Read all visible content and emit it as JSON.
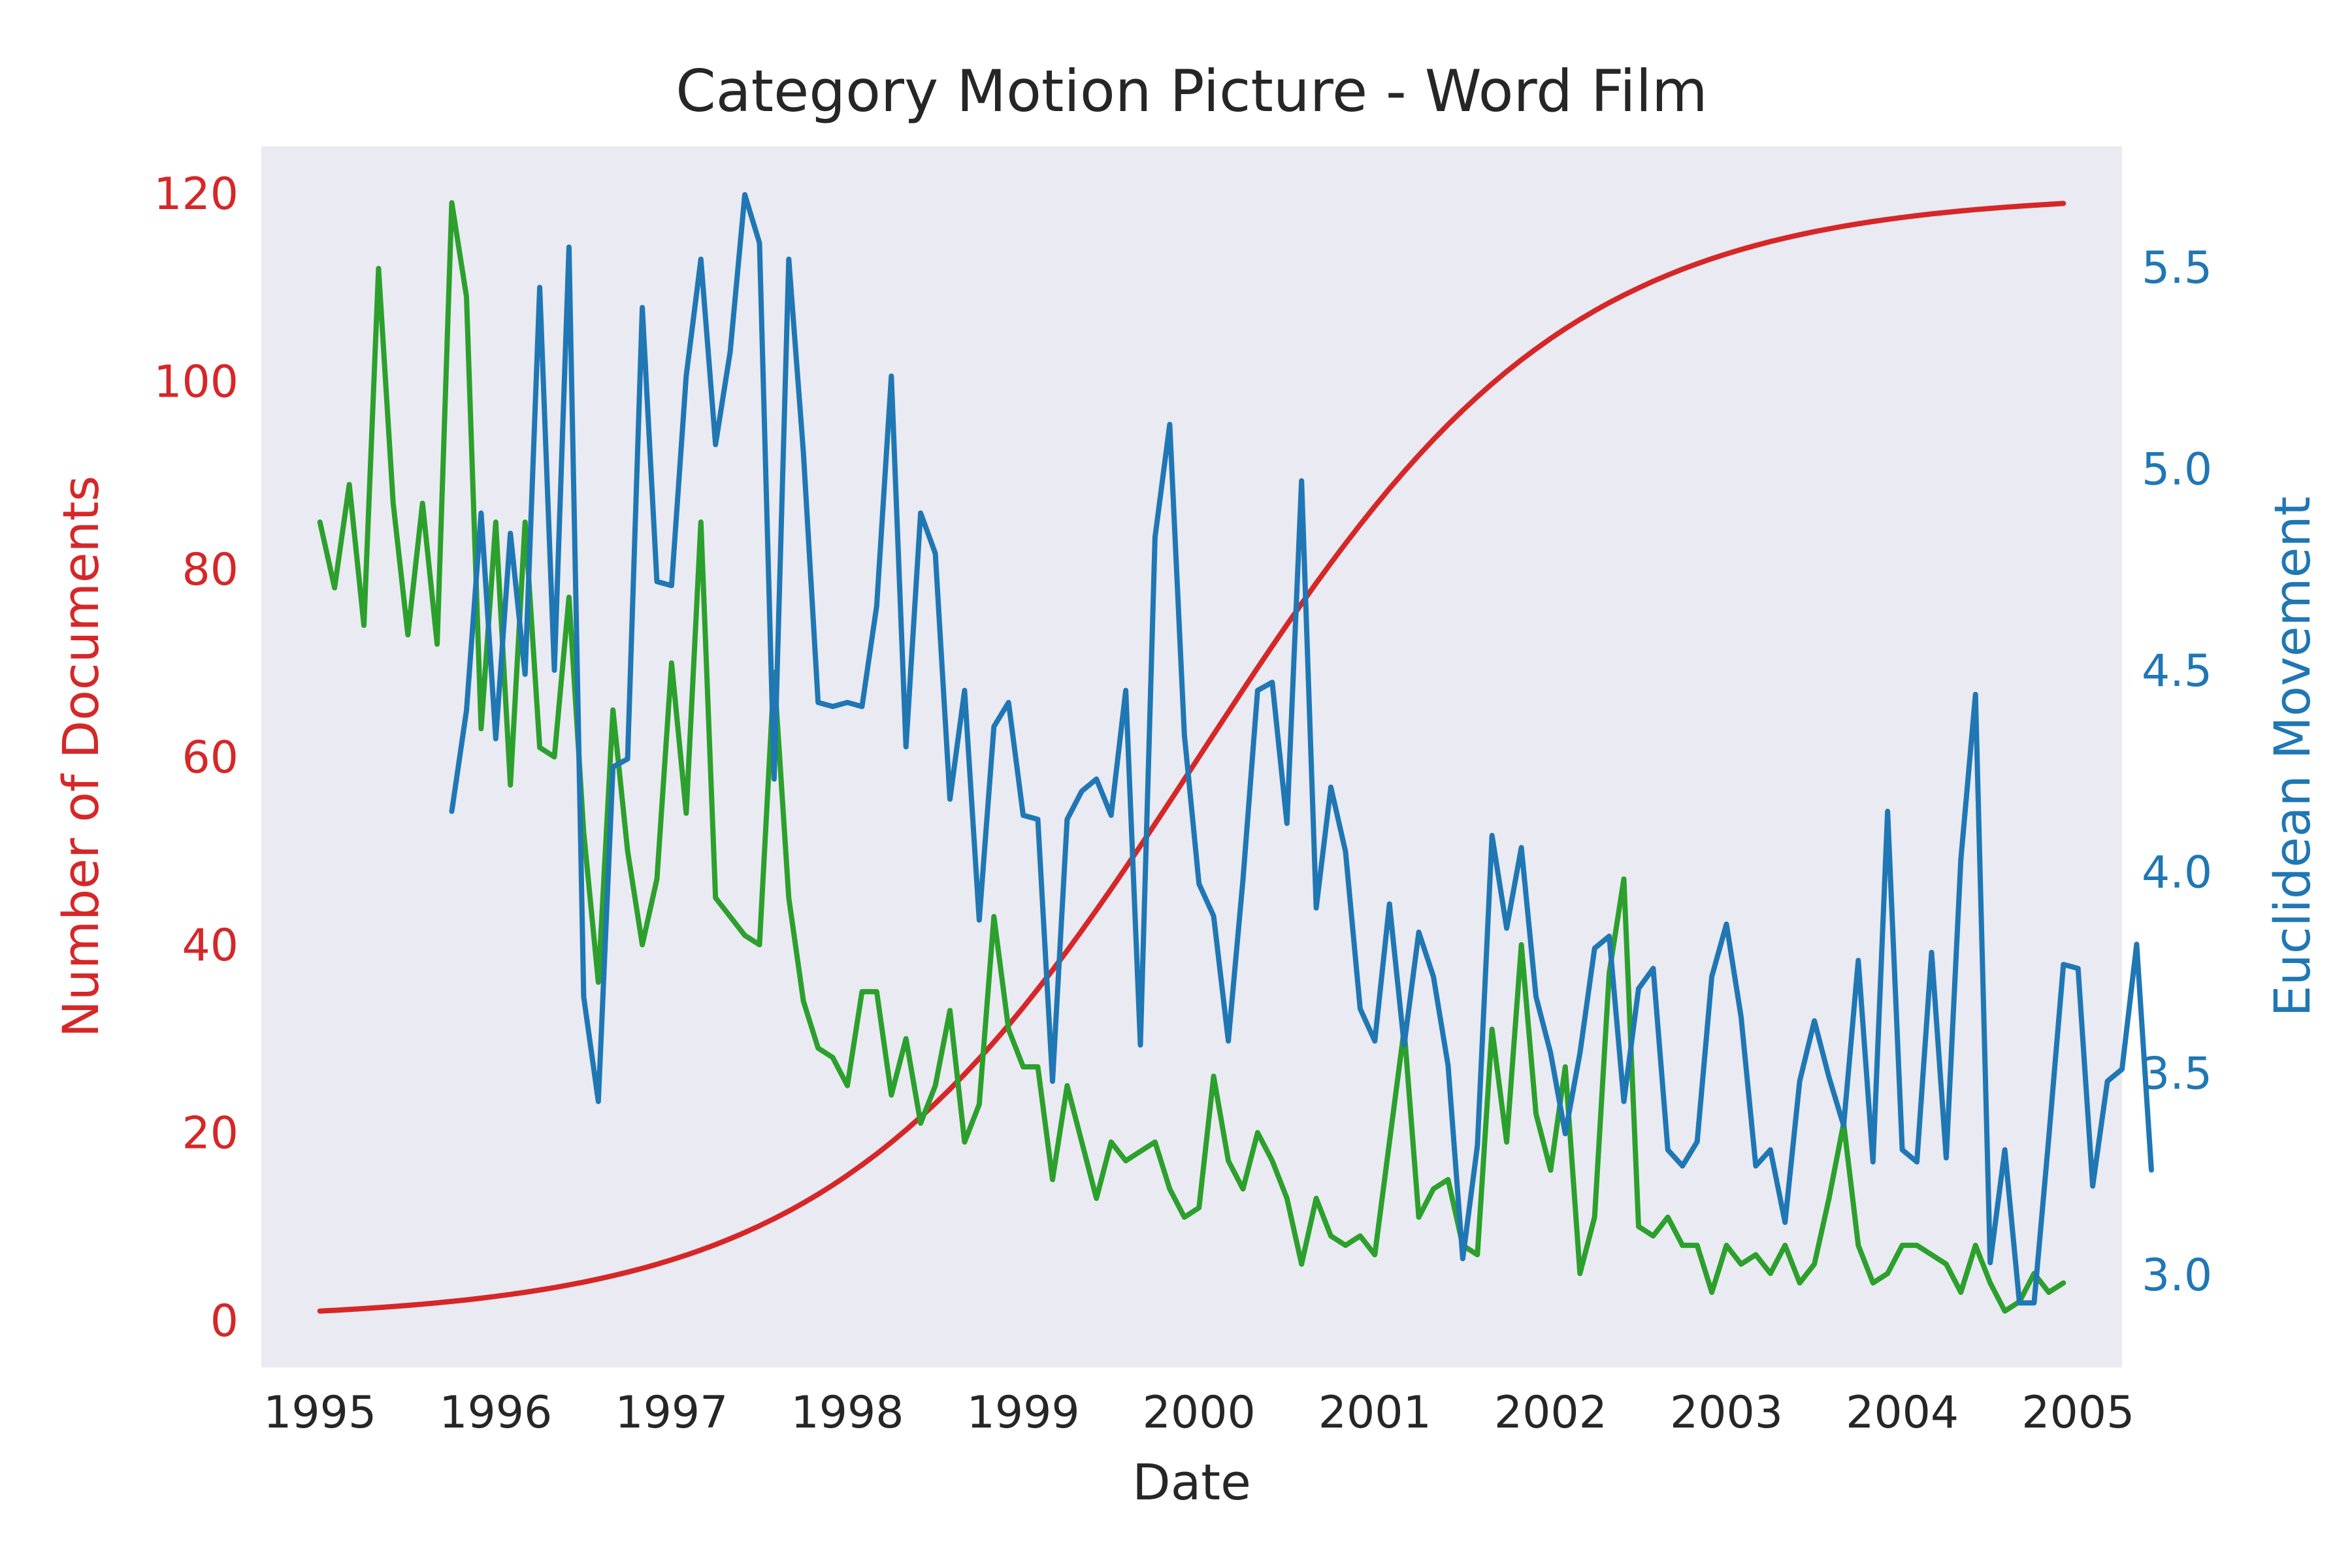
{
  "chart_data": {
    "type": "line",
    "title": "Category Motion Picture - Word Film",
    "xlabel": "Date",
    "ylabel_left": "Number of Documents",
    "ylabel_right": "Euclidean Movement",
    "x_ticks": [
      "1995",
      "1996",
      "1997",
      "1998",
      "1999",
      "2000",
      "2001",
      "2002",
      "2003",
      "2004",
      "2005"
    ],
    "y_left_ticks": [
      "0",
      "20",
      "40",
      "60",
      "80",
      "100",
      "120"
    ],
    "y_right_ticks": [
      "3.0",
      "3.5",
      "4.0",
      "4.5",
      "5.0",
      "5.5"
    ],
    "x_range": [
      "1994-09",
      "2005-04"
    ],
    "ylim_left": [
      -5,
      125
    ],
    "ylim_right": [
      2.77,
      5.8
    ],
    "grid": false,
    "colors": {
      "background": "#eaeaf2",
      "cumulative": "#d62728",
      "monthly": "#2ca02c",
      "movement": "#1f77b4",
      "text": "#262626"
    },
    "series": [
      {
        "axis": "left",
        "color": "#d62728",
        "start": "1995-01",
        "end": "2004-12",
        "form": "logistic",
        "asymptote": 120,
        "midpoint": "2000-01",
        "values_at_ticks": {
          "1995": 1,
          "1996": 2.3,
          "1997": 5.5,
          "1998": 14,
          "1999": 32,
          "2000": 60,
          "2001": 89,
          "2002": 107,
          "2003": 114,
          "2004": 118,
          "2005": 119
        }
      },
      {
        "axis": "left",
        "color": "#2ca02c",
        "start": "1995-01",
        "values": [
          85,
          78,
          89,
          74,
          112,
          87,
          73,
          87,
          72,
          119,
          109,
          63,
          85,
          57,
          85,
          61,
          60,
          77,
          52,
          36,
          65,
          50,
          40,
          47,
          70,
          54,
          85,
          45,
          43,
          41,
          40,
          69,
          45,
          34,
          29,
          28,
          25,
          35,
          35,
          24,
          30,
          21,
          25,
          33,
          19,
          23,
          43,
          31,
          27,
          27,
          15,
          25,
          19,
          13,
          19,
          17,
          18,
          19,
          14,
          11,
          12,
          26,
          17,
          14,
          20,
          17,
          13,
          6,
          13,
          9,
          8,
          9,
          7,
          19,
          31,
          11,
          14,
          15,
          8,
          7,
          31,
          19,
          40,
          22,
          16,
          27,
          5,
          11,
          37,
          47,
          10,
          9,
          11,
          8,
          8,
          3,
          8,
          6,
          7,
          5,
          8,
          4,
          6,
          13,
          21,
          8,
          4,
          5,
          8,
          8,
          7,
          6,
          3,
          8,
          4,
          1,
          2,
          5,
          3,
          4
        ]
      },
      {
        "axis": "right",
        "color": "#1f77b4",
        "start": "1995-10",
        "values": [
          4.15,
          4.4,
          4.89,
          4.33,
          4.84,
          4.49,
          5.45,
          4.5,
          5.55,
          3.69,
          3.43,
          4.26,
          4.28,
          5.4,
          4.72,
          4.71,
          5.23,
          5.52,
          5.06,
          5.29,
          5.68,
          5.56,
          4.23,
          5.52,
          5.04,
          4.42,
          4.41,
          4.42,
          4.41,
          4.66,
          5.23,
          4.31,
          4.89,
          4.79,
          4.18,
          4.45,
          3.88,
          4.36,
          4.42,
          4.14,
          4.13,
          3.48,
          4.13,
          4.2,
          4.23,
          4.14,
          4.45,
          3.57,
          4.83,
          5.11,
          4.34,
          3.97,
          3.89,
          3.58,
          3.98,
          4.45,
          4.47,
          4.12,
          4.97,
          3.91,
          4.21,
          4.05,
          3.66,
          3.58,
          3.92,
          3.57,
          3.85,
          3.74,
          3.52,
          3.04,
          3.32,
          4.09,
          3.86,
          4.06,
          3.69,
          3.55,
          3.35,
          3.55,
          3.81,
          3.84,
          3.43,
          3.71,
          3.76,
          3.31,
          3.27,
          3.33,
          3.74,
          3.87,
          3.64,
          3.27,
          3.31,
          3.13,
          3.48,
          3.63,
          3.49,
          3.37,
          3.78,
          3.28,
          4.15,
          3.31,
          3.28,
          3.8,
          3.29,
          4.03,
          4.44,
          3.03,
          3.31,
          2.93,
          2.93,
          3.34,
          3.77,
          3.76,
          3.22,
          3.48,
          3.51,
          3.82,
          3.26
        ]
      }
    ]
  }
}
